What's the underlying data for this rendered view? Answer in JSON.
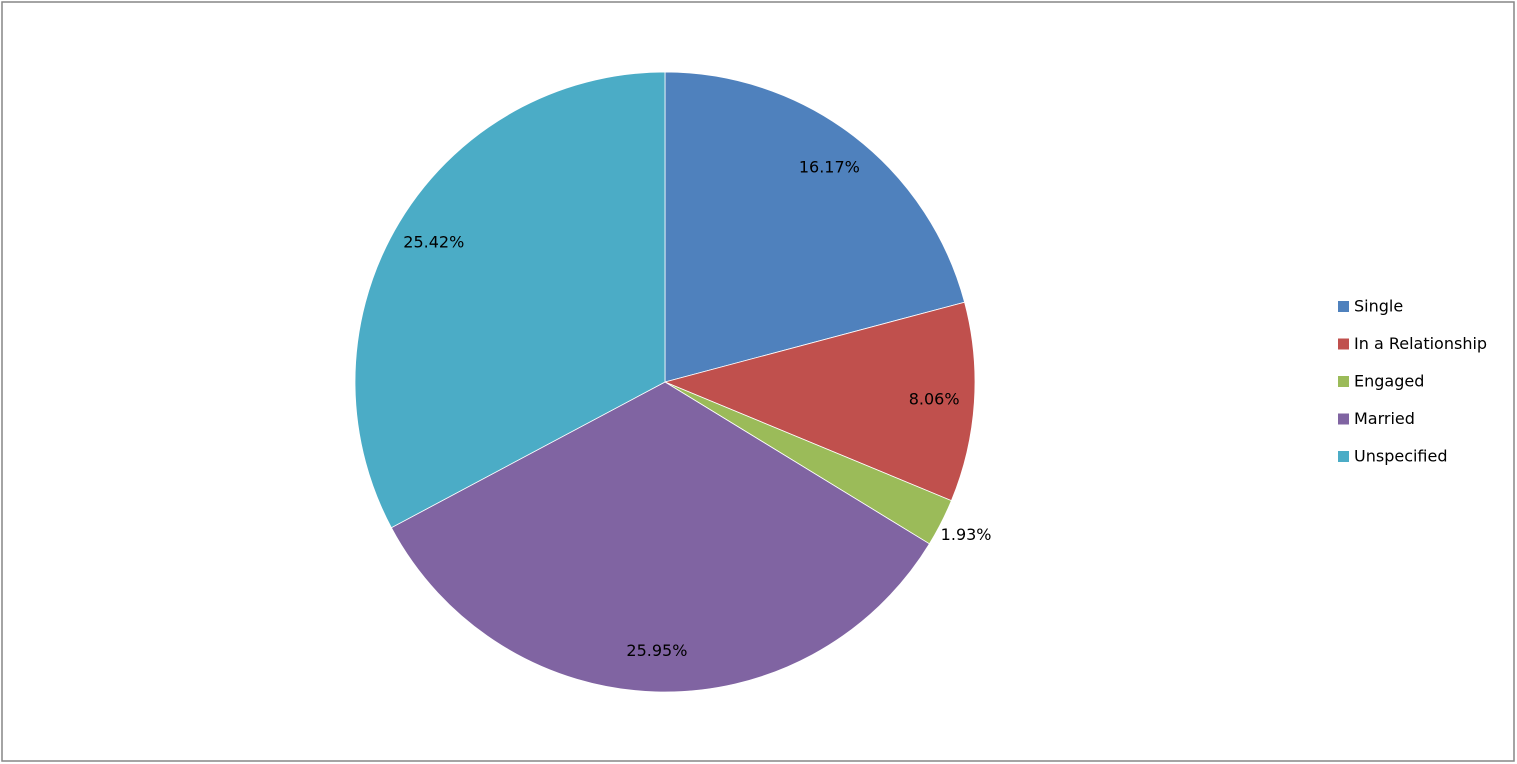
{
  "chart_data": {
    "type": "pie",
    "categories": [
      "Single",
      "In a Relationship",
      "Engaged",
      "Married",
      "Unspecified"
    ],
    "values": [
      16.17,
      8.06,
      1.93,
      25.95,
      25.42
    ],
    "value_labels": [
      "16.17%",
      "8.06%",
      "1.93%",
      "25.95%",
      "25.42%"
    ],
    "colors": [
      "#4f81bd",
      "#c0504d",
      "#9bbb59",
      "#8064a2",
      "#4bacc6"
    ],
    "legend": "right"
  }
}
